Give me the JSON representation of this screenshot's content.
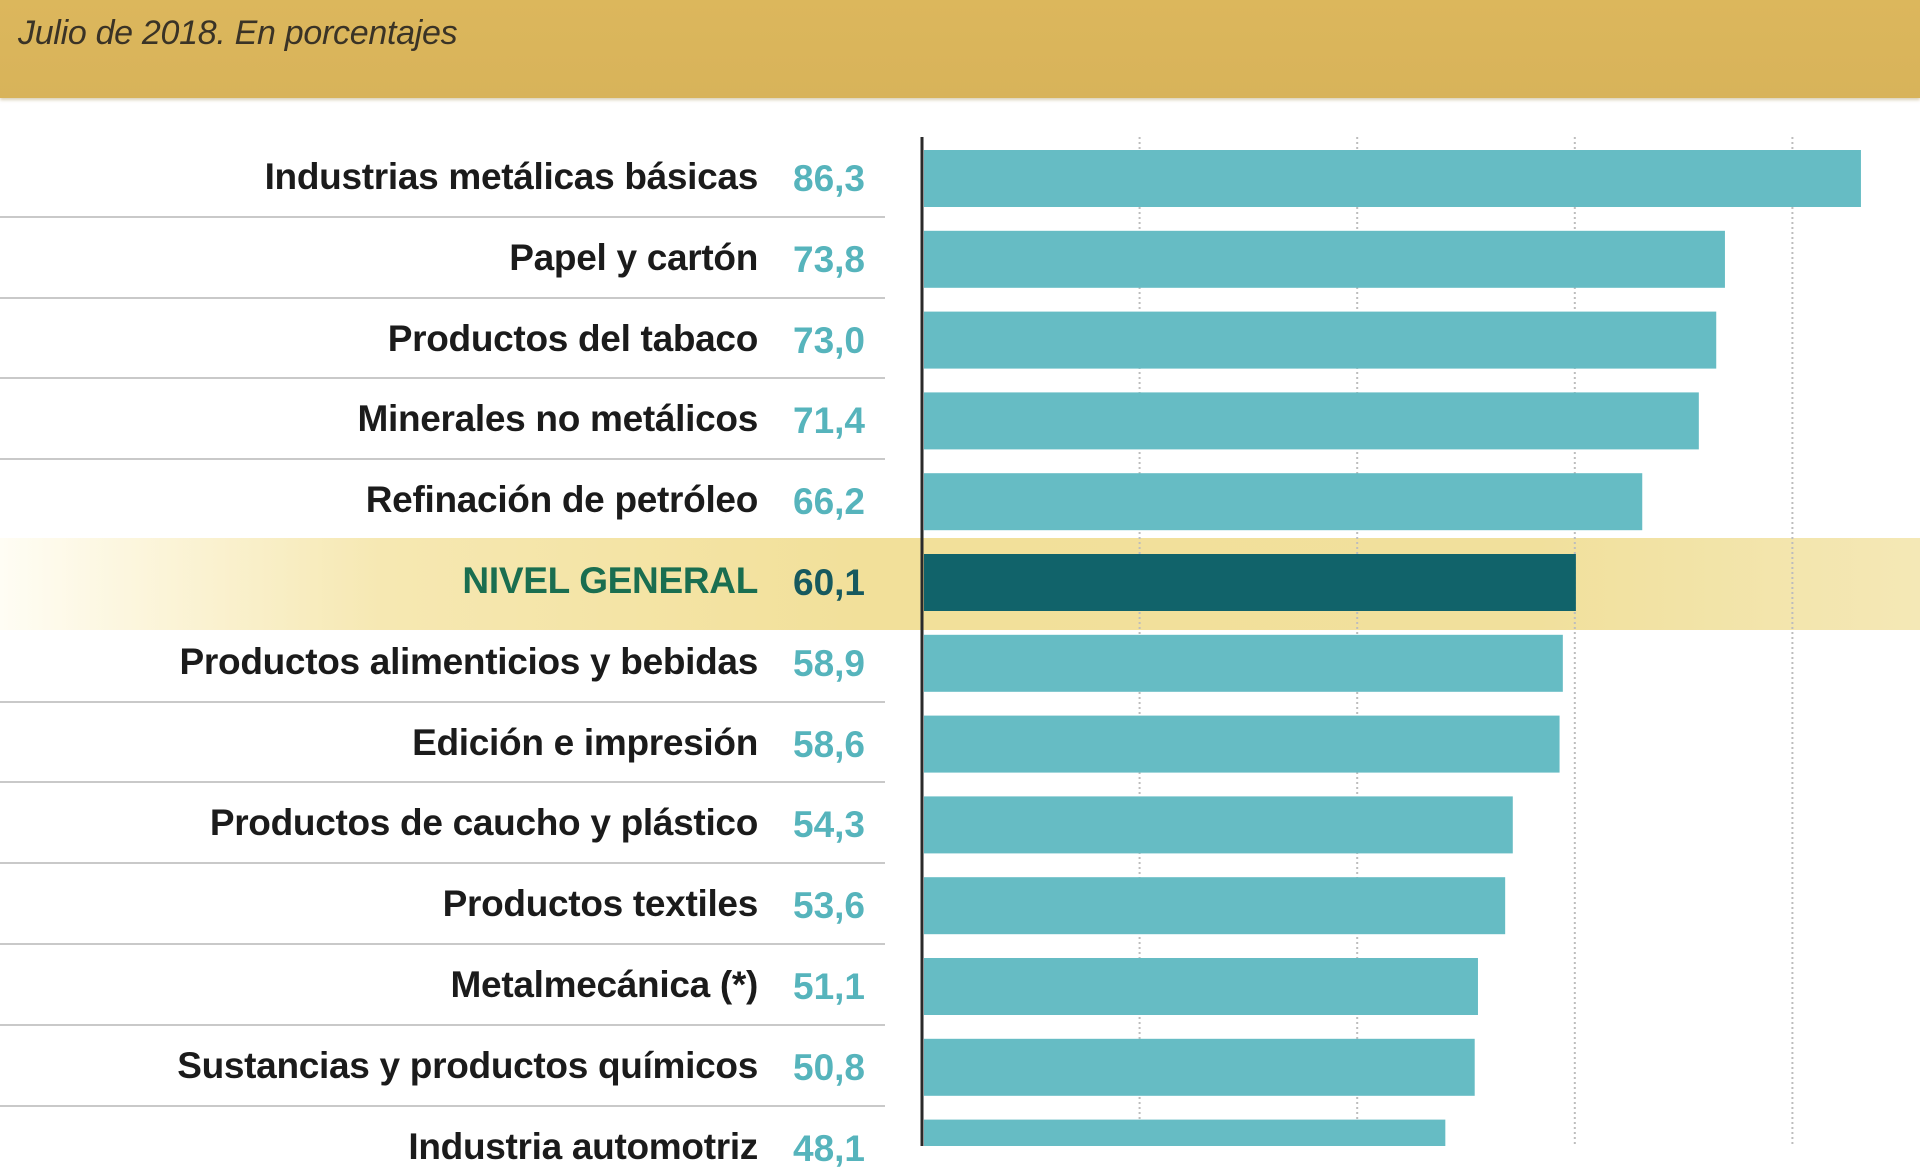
{
  "header": {
    "subtitle": "Julio de 2018. En porcentajes"
  },
  "colors": {
    "header_band": "#d9b45a",
    "bar": "#66bcc4",
    "highlight_bar": "#11636a",
    "value_text": "#56b4bc",
    "highlight_label": "#1a6e50",
    "highlight_value": "#17595e"
  },
  "chart_data": {
    "type": "bar",
    "orientation": "horizontal",
    "title": "",
    "subtitle": "Julio de 2018. En porcentajes",
    "xlabel": "",
    "ylabel": "",
    "xlim": [
      0,
      90
    ],
    "gridlines": [
      20,
      40,
      60,
      80
    ],
    "grid": true,
    "highlight_category": "NIVEL GENERAL",
    "categories": [
      "Industrias metálicas básicas",
      "Papel y cartón",
      "Productos del tabaco",
      "Minerales no metálicos",
      "Refinación de petróleo",
      "NIVEL GENERAL",
      "Productos alimenticios y bebidas",
      "Edición e impresión",
      "Productos de caucho y plástico",
      "Productos textiles",
      "Metalmecánica (*)",
      "Sustancias y productos químicos",
      "Industria automotriz"
    ],
    "values": [
      86.3,
      73.8,
      73.0,
      71.4,
      66.2,
      60.1,
      58.9,
      58.6,
      54.3,
      53.6,
      51.1,
      50.8,
      48.1
    ],
    "value_labels": [
      "86,3",
      "73,8",
      "73,0",
      "71,4",
      "66,2",
      "60,1",
      "58,9",
      "58,6",
      "54,3",
      "53,6",
      "51,1",
      "50,8",
      "48,1"
    ]
  }
}
